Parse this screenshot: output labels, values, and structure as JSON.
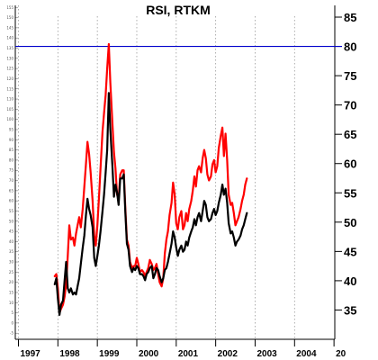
{
  "chart_data": {
    "type": "line",
    "title": "RSI, RTKM",
    "xlabel": "",
    "ylabel": "",
    "x_tick_labels": [
      "1997",
      "1998",
      "1999",
      "2000",
      "2001",
      "2002",
      "2003",
      "2004",
      "20"
    ],
    "x_range": [
      1996.92,
      2005.02
    ],
    "y_right": {
      "range": [
        30,
        87
      ],
      "ticks": [
        35,
        40,
        45,
        50,
        55,
        60,
        65,
        70,
        75,
        80,
        85
      ]
    },
    "y_left": {
      "range": [
        -8,
        156
      ],
      "ticks": [
        -5,
        0,
        5,
        10,
        15,
        20,
        25,
        30,
        35,
        40,
        45,
        50,
        55,
        60,
        65,
        70,
        75,
        80,
        85,
        90,
        95,
        100,
        105,
        110,
        115,
        120,
        125,
        130,
        135,
        140,
        145,
        150,
        155
      ]
    },
    "reference_line": {
      "value": 80,
      "axis": "right",
      "color": "#0000cc"
    },
    "grid": true,
    "grid_style": "dotted vertical at year ticks",
    "series": [
      {
        "color": "#ff0000",
        "axis": "left",
        "points": [
          [
            1997.92,
            23
          ],
          [
            1997.96,
            24
          ],
          [
            1998.0,
            17
          ],
          [
            1998.04,
            5
          ],
          [
            1998.08,
            7
          ],
          [
            1998.13,
            9
          ],
          [
            1998.17,
            13
          ],
          [
            1998.21,
            19
          ],
          [
            1998.25,
            33
          ],
          [
            1998.29,
            48
          ],
          [
            1998.33,
            41
          ],
          [
            1998.38,
            42
          ],
          [
            1998.42,
            38
          ],
          [
            1998.46,
            44
          ],
          [
            1998.5,
            48
          ],
          [
            1998.54,
            52
          ],
          [
            1998.58,
            47
          ],
          [
            1998.63,
            56
          ],
          [
            1998.67,
            67
          ],
          [
            1998.71,
            78
          ],
          [
            1998.75,
            89
          ],
          [
            1998.79,
            83
          ],
          [
            1998.83,
            74
          ],
          [
            1998.88,
            60
          ],
          [
            1998.92,
            43
          ],
          [
            1998.96,
            38
          ],
          [
            1999.0,
            48
          ],
          [
            1999.04,
            61
          ],
          [
            1999.08,
            76
          ],
          [
            1999.13,
            94
          ],
          [
            1999.17,
            103
          ],
          [
            1999.21,
            112
          ],
          [
            1999.25,
            125
          ],
          [
            1999.29,
            137
          ],
          [
            1999.33,
            118
          ],
          [
            1999.38,
            99
          ],
          [
            1999.42,
            84
          ],
          [
            1999.46,
            76
          ],
          [
            1999.5,
            63
          ],
          [
            1999.54,
            61
          ],
          [
            1999.58,
            73
          ],
          [
            1999.63,
            75
          ],
          [
            1999.67,
            75
          ],
          [
            1999.71,
            56
          ],
          [
            1999.75,
            41
          ],
          [
            1999.79,
            38
          ],
          [
            1999.83,
            30
          ],
          [
            1999.88,
            27
          ],
          [
            1999.92,
            28
          ],
          [
            1999.96,
            28
          ],
          [
            2000.0,
            32
          ],
          [
            2000.04,
            29
          ],
          [
            2000.08,
            25
          ],
          [
            2000.13,
            26
          ],
          [
            2000.17,
            25
          ],
          [
            2000.21,
            23
          ],
          [
            2000.25,
            25
          ],
          [
            2000.29,
            27
          ],
          [
            2000.33,
            31
          ],
          [
            2000.38,
            29
          ],
          [
            2000.42,
            26
          ],
          [
            2000.46,
            27
          ],
          [
            2000.5,
            29
          ],
          [
            2000.54,
            24
          ],
          [
            2000.58,
            20
          ],
          [
            2000.63,
            18
          ],
          [
            2000.67,
            22
          ],
          [
            2000.71,
            34
          ],
          [
            2000.75,
            41
          ],
          [
            2000.79,
            45
          ],
          [
            2000.83,
            53
          ],
          [
            2000.88,
            59
          ],
          [
            2000.92,
            69
          ],
          [
            2000.96,
            63
          ],
          [
            2001.0,
            49
          ],
          [
            2001.04,
            46
          ],
          [
            2001.08,
            52
          ],
          [
            2001.13,
            55
          ],
          [
            2001.17,
            46
          ],
          [
            2001.21,
            48
          ],
          [
            2001.25,
            54
          ],
          [
            2001.29,
            50
          ],
          [
            2001.33,
            56
          ],
          [
            2001.38,
            60
          ],
          [
            2001.42,
            65
          ],
          [
            2001.46,
            72
          ],
          [
            2001.5,
            67
          ],
          [
            2001.54,
            75
          ],
          [
            2001.58,
            77
          ],
          [
            2001.63,
            74
          ],
          [
            2001.67,
            81
          ],
          [
            2001.71,
            85
          ],
          [
            2001.75,
            81
          ],
          [
            2001.79,
            73
          ],
          [
            2001.83,
            70
          ],
          [
            2001.88,
            72
          ],
          [
            2001.92,
            78
          ],
          [
            2001.96,
            80
          ],
          [
            2002.0,
            74
          ],
          [
            2002.04,
            77
          ],
          [
            2002.08,
            86
          ],
          [
            2002.13,
            92
          ],
          [
            2002.17,
            96
          ],
          [
            2002.21,
            82
          ],
          [
            2002.25,
            93
          ],
          [
            2002.29,
            80
          ],
          [
            2002.33,
            63
          ],
          [
            2002.38,
            58
          ],
          [
            2002.42,
            59
          ],
          [
            2002.46,
            54
          ],
          [
            2002.5,
            48
          ],
          [
            2002.54,
            50
          ],
          [
            2002.58,
            52
          ],
          [
            2002.63,
            56
          ],
          [
            2002.67,
            60
          ],
          [
            2002.71,
            63
          ],
          [
            2002.75,
            68
          ],
          [
            2002.79,
            71
          ]
        ]
      },
      {
        "color": "#000000",
        "axis": "left",
        "points": [
          [
            1997.92,
            19
          ],
          [
            1997.96,
            22
          ],
          [
            1998.0,
            12
          ],
          [
            1998.04,
            4
          ],
          [
            1998.08,
            9
          ],
          [
            1998.13,
            11
          ],
          [
            1998.17,
            21
          ],
          [
            1998.21,
            30
          ],
          [
            1998.25,
            17
          ],
          [
            1998.29,
            15
          ],
          [
            1998.33,
            17
          ],
          [
            1998.38,
            14
          ],
          [
            1998.42,
            15
          ],
          [
            1998.46,
            14
          ],
          [
            1998.5,
            18
          ],
          [
            1998.54,
            22
          ],
          [
            1998.58,
            29
          ],
          [
            1998.63,
            37
          ],
          [
            1998.67,
            43
          ],
          [
            1998.71,
            53
          ],
          [
            1998.75,
            61
          ],
          [
            1998.79,
            56
          ],
          [
            1998.83,
            53
          ],
          [
            1998.88,
            47
          ],
          [
            1998.92,
            32
          ],
          [
            1998.96,
            28
          ],
          [
            1999.0,
            33
          ],
          [
            1999.04,
            38
          ],
          [
            1999.08,
            45
          ],
          [
            1999.13,
            55
          ],
          [
            1999.17,
            63
          ],
          [
            1999.21,
            74
          ],
          [
            1999.25,
            85
          ],
          [
            1999.29,
            113
          ],
          [
            1999.33,
            95
          ],
          [
            1999.38,
            78
          ],
          [
            1999.42,
            62
          ],
          [
            1999.46,
            68
          ],
          [
            1999.5,
            64
          ],
          [
            1999.54,
            58
          ],
          [
            1999.58,
            71
          ],
          [
            1999.63,
            71
          ],
          [
            1999.67,
            73
          ],
          [
            1999.71,
            54
          ],
          [
            1999.75,
            39
          ],
          [
            1999.79,
            36
          ],
          [
            1999.83,
            28
          ],
          [
            1999.88,
            25
          ],
          [
            1999.92,
            27
          ],
          [
            1999.96,
            26
          ],
          [
            2000.0,
            28
          ],
          [
            2000.04,
            27
          ],
          [
            2000.08,
            24
          ],
          [
            2000.13,
            24
          ],
          [
            2000.17,
            23
          ],
          [
            2000.21,
            21
          ],
          [
            2000.25,
            24
          ],
          [
            2000.29,
            25
          ],
          [
            2000.33,
            27
          ],
          [
            2000.38,
            28
          ],
          [
            2000.42,
            22
          ],
          [
            2000.46,
            24
          ],
          [
            2000.5,
            27
          ],
          [
            2000.54,
            26
          ],
          [
            2000.58,
            23
          ],
          [
            2000.63,
            20
          ],
          [
            2000.67,
            22
          ],
          [
            2000.71,
            26
          ],
          [
            2000.75,
            27
          ],
          [
            2000.79,
            30
          ],
          [
            2000.83,
            34
          ],
          [
            2000.88,
            39
          ],
          [
            2000.92,
            45
          ],
          [
            2000.96,
            42
          ],
          [
            2001.0,
            37
          ],
          [
            2001.04,
            33
          ],
          [
            2001.08,
            36
          ],
          [
            2001.13,
            38
          ],
          [
            2001.17,
            35
          ],
          [
            2001.21,
            36
          ],
          [
            2001.25,
            40
          ],
          [
            2001.29,
            38
          ],
          [
            2001.33,
            42
          ],
          [
            2001.38,
            45
          ],
          [
            2001.42,
            47
          ],
          [
            2001.46,
            51
          ],
          [
            2001.5,
            48
          ],
          [
            2001.54,
            52
          ],
          [
            2001.58,
            54
          ],
          [
            2001.63,
            50
          ],
          [
            2001.67,
            55
          ],
          [
            2001.71,
            60
          ],
          [
            2001.75,
            58
          ],
          [
            2001.79,
            52
          ],
          [
            2001.83,
            50
          ],
          [
            2001.88,
            51
          ],
          [
            2001.92,
            54
          ],
          [
            2001.96,
            56
          ],
          [
            2002.0,
            53
          ],
          [
            2002.04,
            55
          ],
          [
            2002.08,
            59
          ],
          [
            2002.13,
            63
          ],
          [
            2002.17,
            68
          ],
          [
            2002.21,
            63
          ],
          [
            2002.25,
            66
          ],
          [
            2002.29,
            59
          ],
          [
            2002.33,
            49
          ],
          [
            2002.38,
            44
          ],
          [
            2002.42,
            45
          ],
          [
            2002.46,
            42
          ],
          [
            2002.5,
            38
          ],
          [
            2002.54,
            40
          ],
          [
            2002.58,
            41
          ],
          [
            2002.63,
            43
          ],
          [
            2002.67,
            46
          ],
          [
            2002.71,
            48
          ],
          [
            2002.75,
            51
          ],
          [
            2002.79,
            54
          ]
        ]
      }
    ]
  }
}
